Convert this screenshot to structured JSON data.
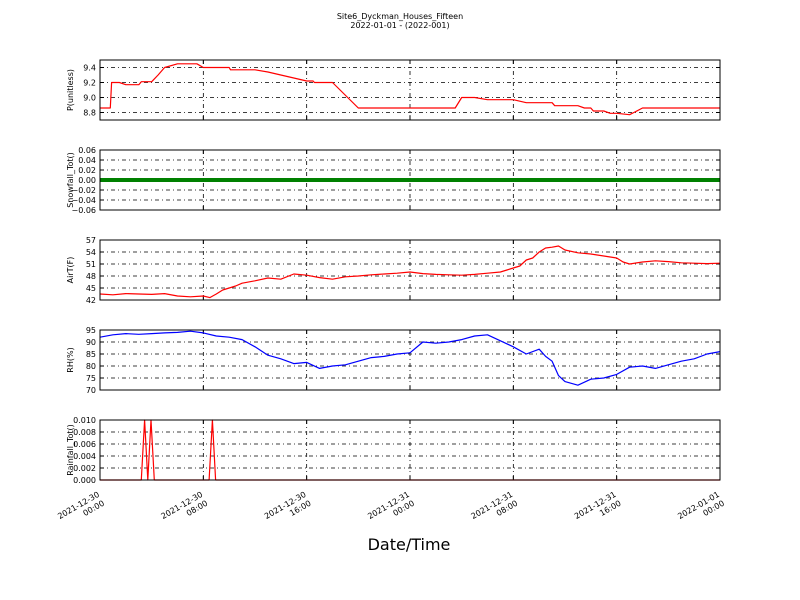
{
  "title": "Site6_Dyckman_Houses_Fifteen",
  "subtitle": "2022-01-01 - (2022-001)",
  "xlabel": "Date/Time",
  "x_ticks": [
    {
      "line1": "2021-12-30",
      "line2": "00:00",
      "h": 0
    },
    {
      "line1": "2021-12-30",
      "line2": "08:00",
      "h": 8
    },
    {
      "line1": "2021-12-30",
      "line2": "16:00",
      "h": 16
    },
    {
      "line1": "2021-12-31",
      "line2": "00:00",
      "h": 24
    },
    {
      "line1": "2021-12-31",
      "line2": "08:00",
      "h": 32
    },
    {
      "line1": "2021-12-31",
      "line2": "16:00",
      "h": 40
    },
    {
      "line1": "2022-01-01",
      "line2": "00:00",
      "h": 48
    }
  ],
  "chart_data": [
    {
      "type": "line",
      "ylabel": "P(unitless)",
      "ylim": [
        8.7,
        9.5
      ],
      "yticks": [
        "8.8",
        "9.0",
        "9.2",
        "9.4"
      ],
      "ytick_values": [
        8.8,
        9.0,
        9.2,
        9.4
      ],
      "grid": true,
      "color": "#ff0000",
      "series": [
        {
          "x": [
            0,
            0.8,
            0.9,
            1.5,
            2,
            3,
            3.2,
            4,
            4.5,
            5,
            6,
            6.2,
            7.5,
            8,
            9,
            10,
            10.1,
            11,
            12,
            13,
            14,
            15,
            16,
            16.5,
            16.6,
            18,
            20,
            22,
            24,
            25,
            25.5,
            25.6,
            27,
            27.5,
            28,
            29,
            30,
            30.2,
            32,
            33,
            34,
            35,
            35.2,
            36,
            37,
            37.5,
            38,
            38.2,
            39,
            39.5,
            39.6,
            40,
            41,
            42,
            44,
            46,
            48
          ],
          "y": [
            8.86,
            8.86,
            9.2,
            9.2,
            9.17,
            9.17,
            9.21,
            9.21,
            9.3,
            9.4,
            9.45,
            9.45,
            9.45,
            9.4,
            9.4,
            9.4,
            9.37,
            9.37,
            9.37,
            9.34,
            9.3,
            9.26,
            9.22,
            9.22,
            9.2,
            9.2,
            8.86,
            8.86,
            8.86,
            8.86,
            8.86,
            8.86,
            8.86,
            8.86,
            9.0,
            9.0,
            8.97,
            8.97,
            8.97,
            8.93,
            8.93,
            8.93,
            8.89,
            8.89,
            8.89,
            8.86,
            8.86,
            8.82,
            8.82,
            8.79,
            8.79,
            8.79,
            8.77,
            8.86,
            8.86,
            8.86,
            8.86
          ]
        }
      ]
    },
    {
      "type": "line",
      "ylabel": "Snowfall_Tot()",
      "ylim": [
        -0.06,
        0.06
      ],
      "yticks": [
        "−0.06",
        "−0.04",
        "−0.02",
        "0.00",
        "0.02",
        "0.04",
        "0.06"
      ],
      "ytick_values": [
        -0.06,
        -0.04,
        -0.02,
        0.0,
        0.02,
        0.04,
        0.06
      ],
      "grid": true,
      "color": "#008000",
      "series": [
        {
          "x": [
            0,
            48
          ],
          "y": [
            0,
            0
          ]
        }
      ]
    },
    {
      "type": "line",
      "ylabel": "AirT(F)",
      "ylim": [
        42,
        57
      ],
      "yticks": [
        "42",
        "45",
        "48",
        "51",
        "54",
        "57"
      ],
      "ytick_values": [
        42,
        45,
        48,
        51,
        54,
        57
      ],
      "grid": true,
      "color": "#ff0000",
      "series": [
        {
          "x": [
            0,
            1,
            2,
            3,
            4,
            5,
            6,
            7,
            8,
            8.5,
            9,
            9.5,
            10,
            10.5,
            11,
            12,
            13,
            14,
            15,
            16,
            17,
            18,
            19,
            20,
            21,
            22,
            23,
            24,
            25,
            26,
            27,
            28,
            29,
            30,
            31,
            31.5,
            32,
            32.5,
            33,
            33.5,
            34,
            34.5,
            35,
            35.5,
            36,
            37,
            38,
            39,
            40,
            40.5,
            41,
            42,
            43,
            44,
            45,
            46,
            47,
            48
          ],
          "y": [
            43.5,
            43.3,
            43.6,
            43.5,
            43.4,
            43.6,
            43,
            42.8,
            43,
            42.6,
            43.5,
            44.5,
            45,
            45.5,
            46.2,
            46.8,
            47.5,
            47.2,
            48.5,
            48.2,
            47.6,
            47.2,
            47.8,
            48,
            48.3,
            48.5,
            48.7,
            49,
            48.6,
            48.4,
            48.3,
            48.2,
            48.4,
            48.7,
            49,
            49.5,
            50,
            50.5,
            52,
            52.5,
            54,
            55,
            55.2,
            55.5,
            54.5,
            53.8,
            53.5,
            53,
            52.5,
            51.5,
            51,
            51.5,
            51.8,
            51.6,
            51.3,
            51.2,
            51.1,
            51.2
          ]
        }
      ]
    },
    {
      "type": "line",
      "ylabel": "RH(%)",
      "ylim": [
        70,
        95
      ],
      "yticks": [
        "70",
        "75",
        "80",
        "85",
        "90",
        "95"
      ],
      "ytick_values": [
        70,
        75,
        80,
        85,
        90,
        95
      ],
      "grid": true,
      "color": "#0000ff",
      "series": [
        {
          "x": [
            0,
            1,
            2,
            3,
            4,
            5,
            6,
            7,
            8,
            9,
            10,
            11,
            12,
            13,
            14,
            15,
            16,
            17,
            18,
            19,
            20,
            21,
            22,
            23,
            24,
            25,
            26,
            27,
            28,
            29,
            30,
            31,
            32,
            33,
            34,
            34.5,
            35,
            35.5,
            36,
            37,
            38,
            39,
            40,
            41,
            42,
            43,
            44,
            45,
            46,
            47,
            48
          ],
          "y": [
            92,
            93,
            93.5,
            93.2,
            93.5,
            93.8,
            94,
            94.5,
            93.8,
            92.5,
            92,
            91,
            88,
            84.5,
            83,
            81,
            81.5,
            79,
            80,
            80.5,
            82,
            83.5,
            84,
            85,
            85.5,
            90,
            89.5,
            90,
            91,
            92.5,
            93,
            90.5,
            88,
            85,
            87,
            84,
            82,
            76,
            73.5,
            72,
            74.5,
            75,
            76.5,
            79.5,
            80,
            79,
            80.5,
            82,
            83,
            85,
            86
          ]
        }
      ]
    },
    {
      "type": "line",
      "ylabel": "Rainfall_Tot()",
      "ylim": [
        0,
        0.01
      ],
      "yticks": [
        "0.000",
        "0.002",
        "0.004",
        "0.006",
        "0.008",
        "0.010"
      ],
      "ytick_values": [
        0,
        0.002,
        0.004,
        0.006,
        0.008,
        0.01
      ],
      "grid": true,
      "color": "#ff0000",
      "series": [
        {
          "x": [
            0,
            3.2,
            3.45,
            3.7,
            3.95,
            4.2,
            8.45,
            8.7,
            8.95,
            48
          ],
          "y": [
            0,
            0,
            0.01,
            0,
            0.01,
            0,
            0,
            0.01,
            0,
            0
          ]
        }
      ]
    }
  ]
}
